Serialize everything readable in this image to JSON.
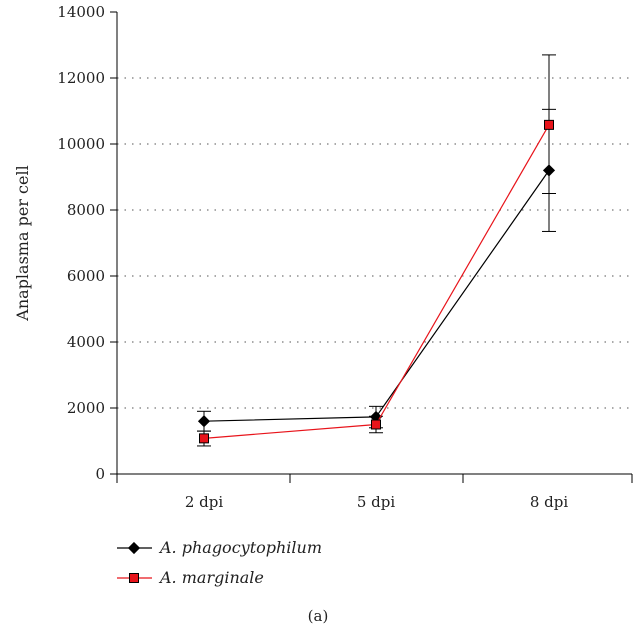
{
  "chart_data": {
    "type": "line",
    "categories": [
      "2 dpi",
      "5 dpi",
      "8 dpi"
    ],
    "ylabel": "Anaplasma per cell",
    "xlabel": "",
    "ylim": [
      0,
      14000
    ],
    "yticks": [
      0,
      2000,
      4000,
      6000,
      8000,
      10000,
      12000,
      14000
    ],
    "grid": "horizontal-dotted",
    "legend": "bottom-left",
    "series": [
      {
        "name": "A. phagocytophilum",
        "marker": "diamond",
        "color": "#000000",
        "values": [
          1600,
          1730,
          9200
        ],
        "err_low": [
          1300,
          1400,
          7350
        ],
        "err_high": [
          1900,
          2050,
          12700
        ]
      },
      {
        "name": "A. marginale",
        "marker": "square",
        "color": "#e8141b",
        "values": [
          1080,
          1500,
          10580
        ],
        "err_low": [
          850,
          1250,
          8500
        ],
        "err_high": [
          1300,
          1750,
          11050
        ]
      }
    ]
  },
  "caption": "(a)"
}
